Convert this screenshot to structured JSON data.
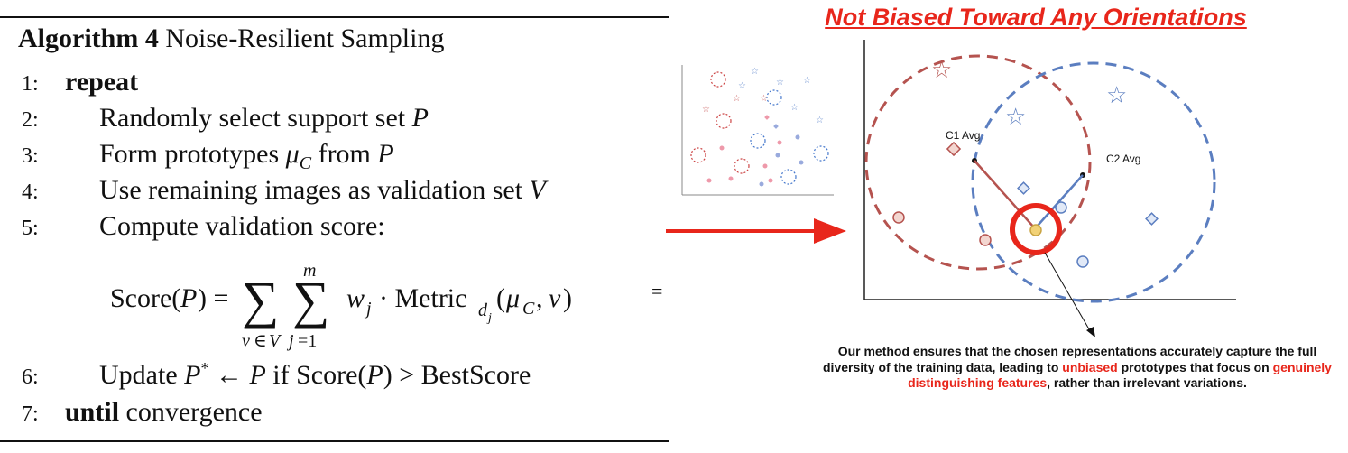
{
  "algorithm": {
    "title_bold": "Algorithm 4",
    "title_rest": "Noise-Resilient Sampling",
    "lines": [
      {
        "num": "1:",
        "text": "repeat"
      },
      {
        "num": "2:",
        "text": "Randomly select support set"
      },
      {
        "num": "3:",
        "text": "Form prototypes"
      },
      {
        "num": "4:",
        "text": "Use remaining images as validation set"
      },
      {
        "num": "5:",
        "text": "Compute validation score:"
      },
      {
        "num": "6:",
        "text": "Update"
      },
      {
        "num": "7:",
        "text": "until"
      }
    ],
    "line7_tail": "convergence"
  },
  "figure": {
    "title": "Not Biased Toward Any Orientations",
    "label_c1": "C1 Avg",
    "label_c2": "C2 Avg",
    "description_parts": {
      "p1": "Our method ensures that the chosen representations accurately capture the full diversity of the training data, leading to ",
      "h1": "unbiased",
      "p2": " prototypes that focus on ",
      "h2": "genuinely distinguishing features",
      "p3": ", rather than irrelevant variations."
    },
    "colors": {
      "red": "#b5534f",
      "blue": "#5b7ec0",
      "accent_red": "#e8261b",
      "yellow": "#f2d277"
    }
  }
}
